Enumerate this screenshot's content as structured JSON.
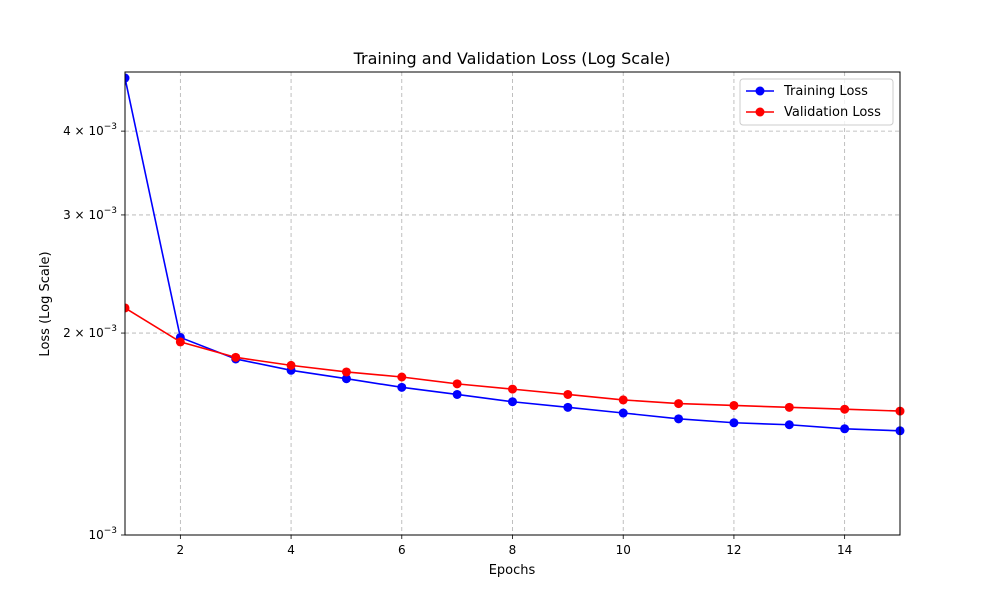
{
  "chart_data": {
    "type": "line",
    "title": "Training and Validation Loss (Log Scale)",
    "xlabel": "Epochs",
    "ylabel": "Loss (Log Scale)",
    "x": [
      1,
      2,
      3,
      4,
      5,
      6,
      7,
      8,
      9,
      10,
      11,
      12,
      13,
      14,
      15
    ],
    "series": [
      {
        "name": "Training Loss",
        "color": "#0000ff",
        "values": [
          0.0048,
          0.00197,
          0.00183,
          0.00176,
          0.00171,
          0.00166,
          0.00162,
          0.00158,
          0.00155,
          0.00152,
          0.00149,
          0.00147,
          0.00146,
          0.00144,
          0.00143
        ]
      },
      {
        "name": "Validation Loss",
        "color": "#ff0000",
        "values": [
          0.00218,
          0.00194,
          0.00184,
          0.00179,
          0.00175,
          0.00172,
          0.00168,
          0.00165,
          0.00162,
          0.00159,
          0.00157,
          0.00156,
          0.00155,
          0.00154,
          0.00153
        ]
      }
    ],
    "xlim": [
      1,
      15
    ],
    "ylim": [
      0.001,
      0.0049
    ],
    "yscale": "log",
    "xticks": [
      2,
      4,
      6,
      8,
      10,
      12,
      14
    ],
    "xtick_labels": [
      "2",
      "4",
      "6",
      "8",
      "10",
      "12",
      "14"
    ],
    "yticks": [
      0.001,
      0.002,
      0.003,
      0.004
    ],
    "ytick_labels": [
      {
        "mantissa": "",
        "exp": "−3"
      },
      {
        "mantissa": "2 × ",
        "exp": "−3"
      },
      {
        "mantissa": "3 × ",
        "exp": "−3"
      },
      {
        "mantissa": "4 × ",
        "exp": "−3"
      }
    ],
    "grid": true,
    "legend_position": "top-right"
  }
}
